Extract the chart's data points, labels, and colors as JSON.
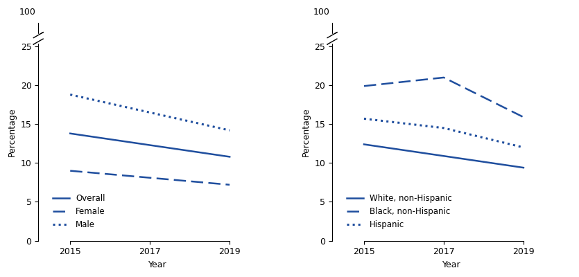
{
  "left": {
    "years_2pt": [
      2015,
      2019
    ],
    "overall": [
      13.8,
      10.8
    ],
    "female": [
      9.0,
      7.2
    ],
    "male": [
      18.8,
      14.2
    ],
    "ylabel": "Percentage",
    "xlabel": "Year",
    "ylim": [
      0,
      28
    ],
    "xticks": [
      2015,
      2017,
      2019
    ],
    "yticks": [
      0,
      5,
      10,
      15,
      20,
      25
    ],
    "ytick_labels": [
      "0",
      "5",
      "10",
      "15",
      "20",
      "25"
    ],
    "legend": [
      "Overall",
      "Female",
      "Male"
    ]
  },
  "right": {
    "years_3pt": [
      2015,
      2017,
      2019
    ],
    "years_2pt": [
      2015,
      2019
    ],
    "white": [
      12.4,
      9.4
    ],
    "black": [
      19.9,
      21.0,
      15.9
    ],
    "hispanic": [
      15.7,
      14.5,
      12.0
    ],
    "ylabel": "Percentage",
    "xlabel": "Year",
    "ylim": [
      0,
      28
    ],
    "xticks": [
      2015,
      2017,
      2019
    ],
    "yticks": [
      0,
      5,
      10,
      15,
      20,
      25
    ],
    "ytick_labels": [
      "0",
      "5",
      "10",
      "15",
      "20",
      "25"
    ],
    "legend": [
      "White, non-Hispanic",
      "Black, non-Hispanic",
      "Hispanic"
    ]
  },
  "line_color": "#1f4e9e",
  "background_color": "#ffffff",
  "top_label": "100"
}
